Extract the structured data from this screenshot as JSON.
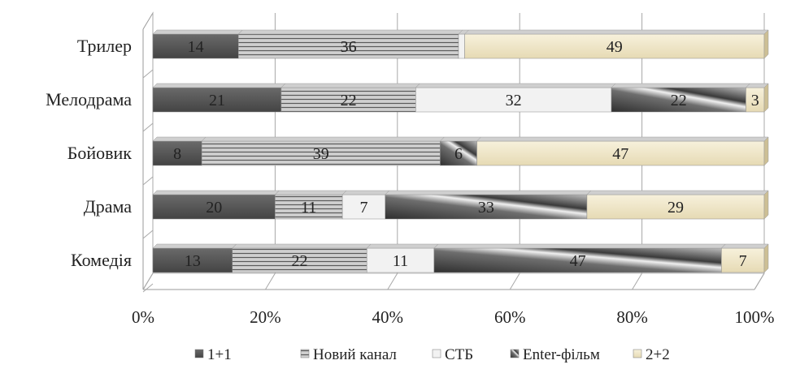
{
  "chart_data": {
    "type": "bar",
    "orientation": "horizontal",
    "stacked": "percent",
    "categories": [
      "Трилер",
      "Мелодрама",
      "Бойовик",
      "Драма",
      "Комедія"
    ],
    "series": [
      {
        "name": "1+1",
        "values": [
          14,
          21,
          8,
          20,
          13
        ],
        "color": "#555555"
      },
      {
        "name": "Новий канал",
        "values": [
          36,
          22,
          39,
          11,
          22
        ],
        "color": "#b8b8b8"
      },
      {
        "name": "СТБ",
        "values": [
          1,
          32,
          0,
          7,
          11
        ],
        "color": "#f2f2f2"
      },
      {
        "name": "Enter-фільм",
        "values": [
          0,
          22,
          6,
          33,
          47
        ],
        "color": "#6e6e6e"
      },
      {
        "name": "2+2",
        "values": [
          49,
          3,
          47,
          29,
          7
        ],
        "color": "#efe7cf"
      }
    ],
    "data_labels": [
      [
        "14",
        "36",
        "",
        "",
        "49"
      ],
      [
        "21",
        "22",
        "32",
        "22",
        "3"
      ],
      [
        "8",
        "39",
        "",
        "6",
        "47"
      ],
      [
        "20",
        "11",
        "7",
        "33",
        "29"
      ],
      [
        "13",
        "22",
        "11",
        "47",
        "7"
      ]
    ],
    "x_ticks": [
      "0%",
      "20%",
      "40%",
      "60%",
      "80%",
      "100%"
    ],
    "xlim": [
      0,
      100
    ],
    "grid": true,
    "legend_position": "bottom",
    "title": "",
    "xlabel": "",
    "ylabel": ""
  }
}
